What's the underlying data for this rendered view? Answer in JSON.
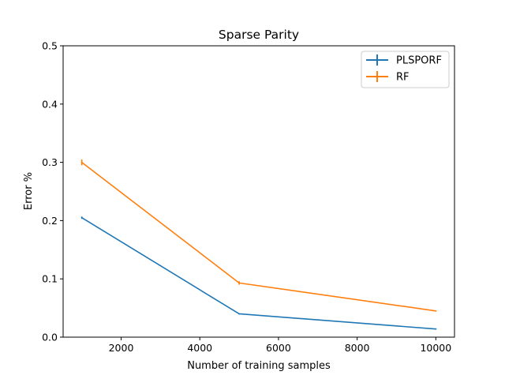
{
  "chart_data": {
    "type": "line",
    "title": "Sparse Parity",
    "xlabel": "Number of training samples",
    "ylabel": "Error %",
    "xlim": [
      525,
      10475
    ],
    "ylim": [
      0,
      0.5
    ],
    "xticks": [
      2000,
      4000,
      6000,
      8000,
      10000
    ],
    "yticks": [
      0.0,
      0.1,
      0.2,
      0.3,
      0.4,
      0.5
    ],
    "xtick_labels": [
      "2000",
      "4000",
      "6000",
      "8000",
      "10000"
    ],
    "ytick_labels": [
      "0.0",
      "0.1",
      "0.2",
      "0.3",
      "0.4",
      "0.5"
    ],
    "grid": false,
    "legend_position": "top-right",
    "series": [
      {
        "name": "PLSPORF",
        "color": "#1f77b4",
        "x": [
          1000,
          5000,
          10000
        ],
        "y": [
          0.205,
          0.04,
          0.014
        ],
        "yerr": [
          0.002,
          0.001,
          0.001
        ]
      },
      {
        "name": "RF",
        "color": "#ff7f0e",
        "x": [
          1000,
          5000,
          10000
        ],
        "y": [
          0.3,
          0.093,
          0.045
        ],
        "yerr": [
          0.005,
          0.003,
          0.001
        ]
      }
    ]
  }
}
